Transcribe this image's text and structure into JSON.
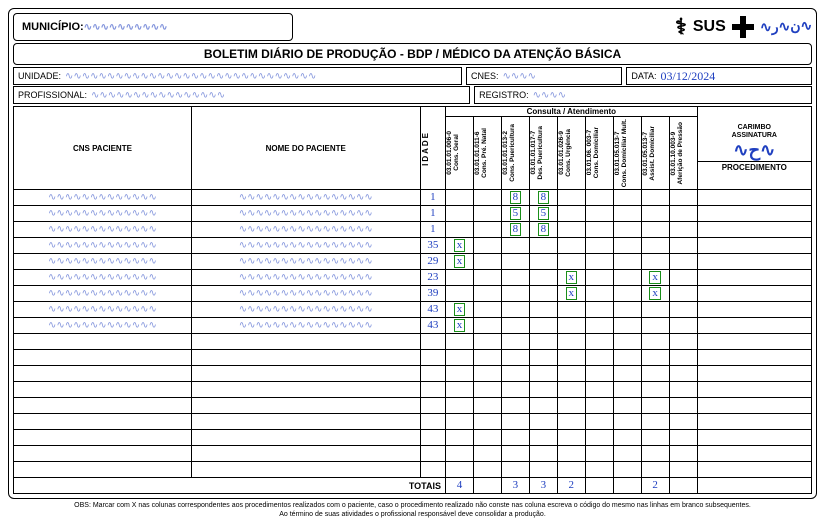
{
  "header": {
    "municipio_label": "MUNICÍPIO:",
    "sus_text": "SUS",
    "title": "BOLETIM DIÁRIO DE PRODUÇÃO - BDP / MÉDICO DA ATENÇÃO BÁSICA"
  },
  "info": {
    "unidade_label": "UNIDADE:",
    "cnes_label": "CNES:",
    "data_label": "DATA:",
    "data_value": "03/12/2024",
    "profissional_label": "PROFISSIONAL:",
    "registro_label": "REGISTRO:",
    "carimbo_label": "CARIMBO\nASSINATURA"
  },
  "table": {
    "cns_header": "CNS PACIENTE",
    "nome_header": "NOME DO PACIENTE",
    "idade_header": "IDADE",
    "consulta_group": "Consulta / Atendimento",
    "procedimento_header": "PROCEDIMENTO",
    "columns": [
      {
        "code": "03.01.01.006-0",
        "label": "Cons. Geral"
      },
      {
        "code": "03.01.01.011-6",
        "label": "Cons. Pré. Natal"
      },
      {
        "code": "03.01.01.013-2",
        "label": "Cons. Puericultura"
      },
      {
        "code": "03.01.01.017-7",
        "label": "Des. Puericultura"
      },
      {
        "code": "03.01.01.026-9",
        "label": "Cons. Urgência"
      },
      {
        "code": "03.01.06. 003-7",
        "label": "Cons. Domiciliar"
      },
      {
        "code": "03.01.05.013-7",
        "label": "Cons. Domiciliar Mult."
      },
      {
        "code": "03.01.05.013-7",
        "label": "Assist. Domiciliar"
      },
      {
        "code": "03.01.10.003-9",
        "label": "Aferição de Pressão"
      }
    ],
    "rows": [
      {
        "idade": "1",
        "marks": {
          "3": "8",
          "4": "8"
        }
      },
      {
        "idade": "1",
        "marks": {
          "3": "5",
          "4": "5"
        }
      },
      {
        "idade": "1",
        "marks": {
          "3": "8",
          "4": "8"
        }
      },
      {
        "idade": "35",
        "marks": {
          "1": "x"
        }
      },
      {
        "idade": "29",
        "marks": {
          "1": "x"
        }
      },
      {
        "idade": "23",
        "marks": {
          "5": "x",
          "8": "x"
        }
      },
      {
        "idade": "39",
        "marks": {
          "5": "x",
          "8": "x"
        }
      },
      {
        "idade": "43",
        "marks": {
          "1": "x"
        }
      },
      {
        "idade": "43",
        "marks": {
          "1": "x"
        }
      }
    ],
    "empty_rows": 9,
    "totals_label": "TOTAIS",
    "totals": {
      "1": "4",
      "3": "3",
      "4": "3",
      "5": "2",
      "8": "2"
    }
  },
  "footnote": {
    "line1": "OBS: Marcar com X nas colunas correspondentes aos procedimentos realizados com o paciente, caso o procedimento realizado não conste nas coluna escreva o código do mesmo nas linhas  em branco subsequentes.",
    "line2": "Ao término de suas atividades o profissional responsável deve consolidar a produção."
  },
  "style": {
    "ink_color": "#2040c0",
    "box_color": "#1a8f1a"
  }
}
